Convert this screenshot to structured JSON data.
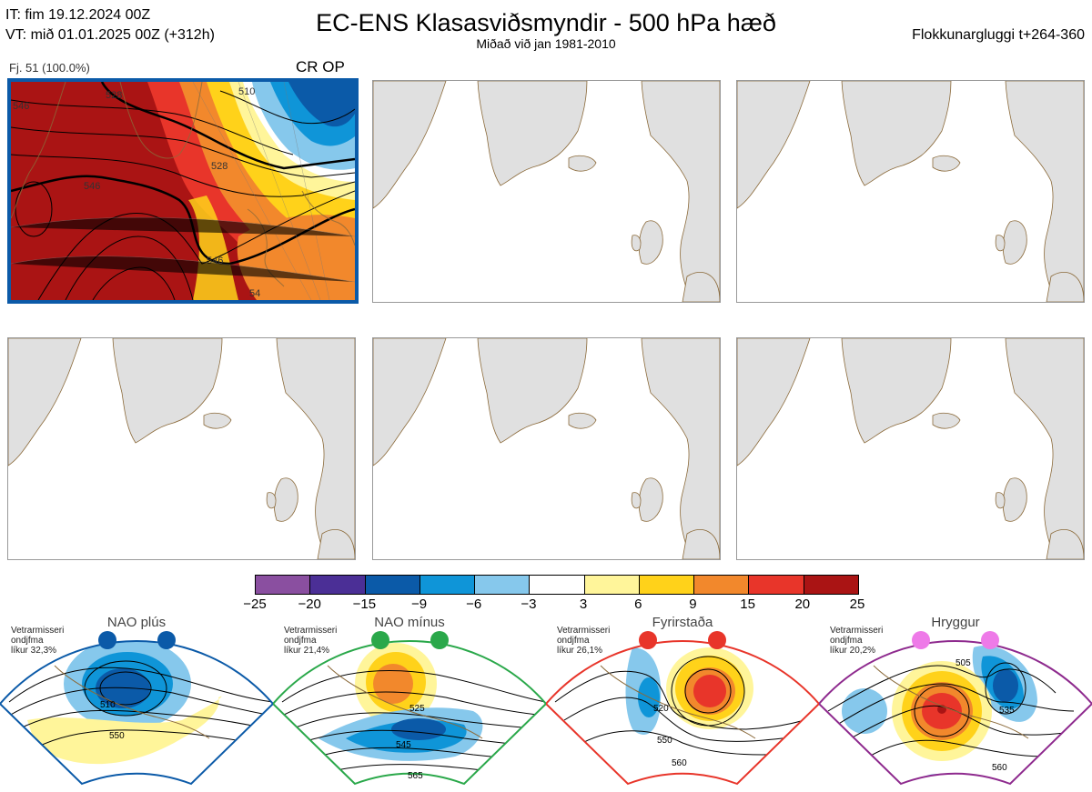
{
  "header": {
    "it_line": "IT: fim 19.12.2024 00Z",
    "vt_line": "VT: mið 01.01.2025 00Z  (+312h)",
    "title": "EC-ENS Klasasviðsmyndir - 500 hPa hæð",
    "subtitle": "Miðað við jan 1981-2010",
    "window": "Flokkunargluggi t+264-360"
  },
  "main_panel": {
    "member_label": "Fj. 51 (100.0%)",
    "code": "CR OP",
    "contour_labels": [
      "546",
      "528",
      "510",
      "546",
      "546",
      "54",
      "528"
    ]
  },
  "colorbar": {
    "colors": [
      "#8a4fa0",
      "#4b2f96",
      "#0b5aa8",
      "#0f95d8",
      "#86c8ec",
      "#ffffff",
      "#fff59a",
      "#ffd21a",
      "#f2882c",
      "#e8352a",
      "#aa1414"
    ],
    "ticks": [
      "−25",
      "−20",
      "−15",
      "−9",
      "−6",
      "−3",
      "3",
      "6",
      "9",
      "15",
      "20",
      "25"
    ]
  },
  "regimes": [
    {
      "title": "NAO plús",
      "note_lines": [
        "Vetrarmisseri",
        "ondjfma",
        "líkur 32,3%"
      ],
      "border_color": "#0b5aa8",
      "dot_color": "#0b5aa8",
      "contour_labels": [
        "510",
        "550"
      ]
    },
    {
      "title": "NAO mínus",
      "note_lines": [
        "Vetrarmisseri",
        "ondjfma",
        "líkur 21,4%"
      ],
      "border_color": "#2aa84a",
      "dot_color": "#2aa84a",
      "contour_labels": [
        "525",
        "545",
        "565"
      ]
    },
    {
      "title": "Fyrirstaða",
      "note_lines": [
        "Vetrarmisseri",
        "ondjfma",
        "líkur 26,1%"
      ],
      "border_color": "#e8352a",
      "dot_color": "#e8352a",
      "contour_labels": [
        "520",
        "550",
        "560"
      ]
    },
    {
      "title": "Hryggur",
      "note_lines": [
        "Vetrarmisseri",
        "ondjfma",
        "líkur 20,2%"
      ],
      "border_color": "#8e2a8e",
      "dot_color": "#ee7ae8",
      "contour_labels": [
        "505",
        "535",
        "560"
      ]
    }
  ]
}
